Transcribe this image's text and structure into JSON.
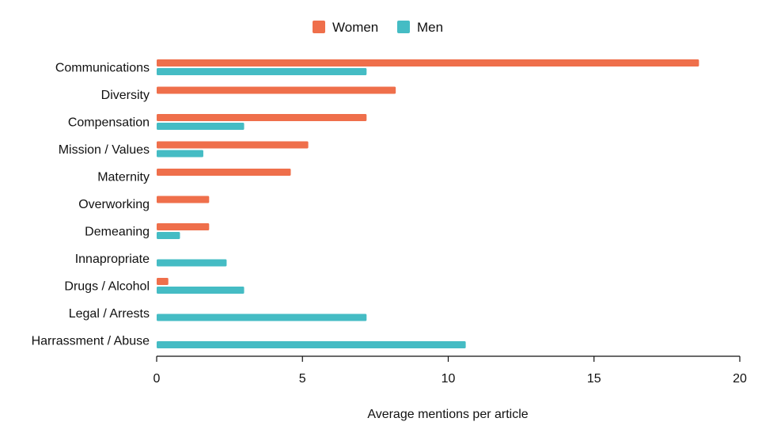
{
  "chart_data": {
    "type": "bar",
    "orientation": "horizontal",
    "title": "",
    "xlabel": "Average mentions per article",
    "ylabel": "",
    "xlim": [
      0,
      20
    ],
    "xticks": [
      0,
      5,
      10,
      15,
      20
    ],
    "grid": false,
    "legend_position": "top-center",
    "categories": [
      "Communications",
      "Diversity",
      "Compensation",
      "Mission / Values",
      "Maternity",
      "Overworking",
      "Demeaning",
      "Innapropriate",
      "Drugs / Alcohol",
      "Legal / Arrests",
      "Harrassment / Abuse"
    ],
    "series": [
      {
        "name": "Women",
        "color": "#ef6f4b",
        "values": [
          18.6,
          8.2,
          7.2,
          5.2,
          4.6,
          1.8,
          1.8,
          0,
          0.4,
          0,
          0
        ]
      },
      {
        "name": "Men",
        "color": "#45bcc4",
        "values": [
          7.2,
          0,
          3.0,
          1.6,
          0,
          0,
          0.8,
          2.4,
          3.0,
          7.2,
          10.6
        ]
      }
    ]
  }
}
